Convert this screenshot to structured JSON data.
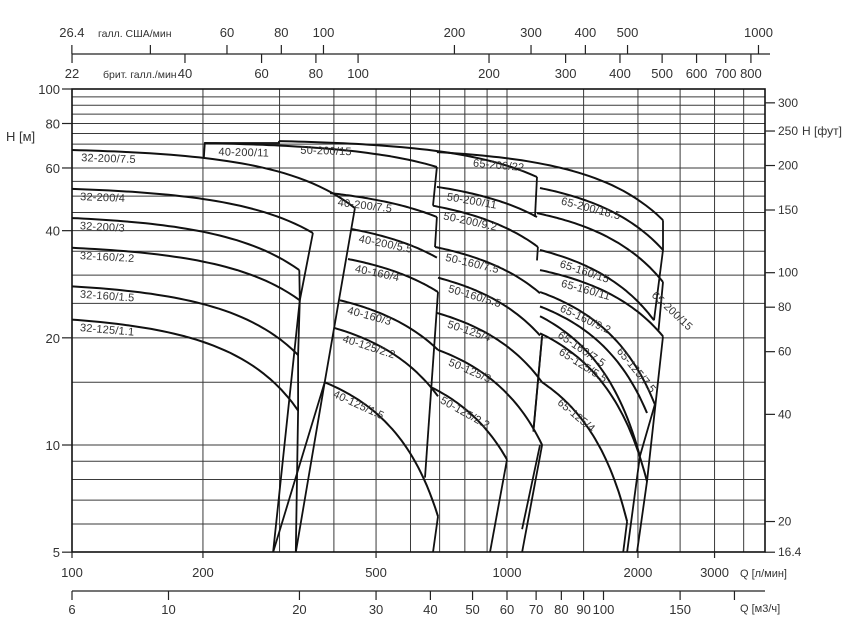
{
  "chart_data": {
    "type": "line",
    "x_scale": "log",
    "y_scale": "log",
    "xlim": [
      100,
      3900
    ],
    "ylim": [
      5,
      100
    ],
    "grid": true,
    "xlabel": "Q [л/мин]",
    "ylabel": "H [м]",
    "y2label": "H [фут]",
    "x2label": "Q [м3/ч]",
    "top_us_label": "галл. США/мин",
    "top_uk_label": "брит. галл./мин",
    "x_ticks": [
      100,
      200,
      500,
      1000,
      2000,
      3000
    ],
    "y_ticks": [
      100,
      80,
      60,
      40,
      20,
      10,
      5
    ],
    "y2_ticks": [
      300,
      250,
      200,
      150,
      100,
      80,
      60,
      40,
      20,
      16.4
    ],
    "us_gpm_ticks": [
      26.4,
      40,
      60,
      80,
      100,
      200,
      300,
      400,
      500,
      1000
    ],
    "us_gpm_labeled": [
      "26.4",
      "",
      "60",
      "80",
      "100",
      "200",
      "300",
      "400",
      "500",
      "1000"
    ],
    "uk_gpm_ticks": [
      22,
      40,
      60,
      80,
      100,
      200,
      300,
      400,
      500,
      600,
      700,
      800
    ],
    "m3h_ticks": [
      6,
      10,
      20,
      30,
      40,
      50,
      60,
      70,
      80,
      90,
      100,
      150,
      200
    ],
    "m3h_labeled": [
      "6",
      "10",
      "20",
      "30",
      "40",
      "50",
      "60",
      "70",
      "80",
      "90",
      "100",
      "150",
      ""
    ],
    "x_gridlines": [
      200,
      300,
      400,
      500,
      600,
      700,
      800,
      900,
      1000,
      1500,
      2000,
      2500,
      3000,
      3500
    ],
    "y_gridlines": [
      95,
      90,
      85,
      80,
      75,
      70,
      60,
      55,
      50,
      45,
      40,
      35,
      30,
      25,
      20,
      15,
      10,
      9,
      8,
      7,
      6
    ],
    "series": [
      {
        "name": "32-200/7.5",
        "points": [
          [
            100,
            67.4
          ],
          [
            447,
            46.3
          ]
        ]
      },
      {
        "name": "32-200/4",
        "points": [
          [
            100,
            52.4
          ],
          [
            358,
            39.4
          ]
        ]
      },
      {
        "name": "32-200/3",
        "points": [
          [
            100,
            43.4
          ],
          [
            333,
            31.0
          ]
        ]
      },
      {
        "name": "32-160/2.2",
        "points": [
          [
            100,
            35.8
          ],
          [
            334,
            25.5
          ]
        ]
      },
      {
        "name": "32-160/1.5",
        "points": [
          [
            100,
            27.9
          ],
          [
            331,
            17.9
          ]
        ]
      },
      {
        "name": "32-125/1.1",
        "points": [
          [
            100,
            22.5
          ],
          [
            331,
            12.5
          ]
        ]
      },
      {
        "name": "40-200/11",
        "points": [
          [
            202,
            70.5
          ],
          [
            690,
            60.4
          ]
        ]
      },
      {
        "name": "40-200/7.5",
        "points": [
          [
            392,
            51.0
          ],
          [
            690,
            43.7
          ]
        ]
      },
      {
        "name": "40-200/5.5",
        "points": [
          [
            440,
            40.4
          ],
          [
            690,
            33.6
          ]
        ]
      },
      {
        "name": "40-160/4",
        "points": [
          [
            431,
            33.3
          ],
          [
            694,
            26.9
          ]
        ]
      },
      {
        "name": "40-160/3",
        "points": [
          [
            413,
            25.5
          ],
          [
            694,
            18.5
          ]
        ]
      },
      {
        "name": "40-125/2.2",
        "points": [
          [
            402,
            21.3
          ],
          [
            694,
            13.7
          ]
        ]
      },
      {
        "name": "40-125/1.5",
        "points": [
          [
            381,
            15.0
          ],
          [
            694,
            6.3
          ]
        ]
      },
      {
        "name": "50-200/15",
        "points": [
          [
            299,
            71.4
          ],
          [
            1172,
            56.6
          ]
        ]
      },
      {
        "name": "50-200/11",
        "points": [
          [
            690,
            53.1
          ],
          [
            1172,
            43.7
          ]
        ]
      },
      {
        "name": "50-200/9.2",
        "points": [
          [
            676,
            47.0
          ],
          [
            1178,
            36.0
          ]
        ]
      },
      {
        "name": "50-160/7.5",
        "points": [
          [
            683,
            36.0
          ],
          [
            1191,
            26.7
          ]
        ]
      },
      {
        "name": "50-160/5.5",
        "points": [
          [
            694,
            29.5
          ],
          [
            1191,
            20.3
          ]
        ]
      },
      {
        "name": "50-125/4",
        "points": [
          [
            690,
            23.5
          ],
          [
            1204,
            15.0
          ]
        ]
      },
      {
        "name": "50-125/3",
        "points": [
          [
            694,
            18.5
          ],
          [
            1204,
            10.0
          ]
        ]
      },
      {
        "name": "50-125/2.2",
        "points": [
          [
            672,
            14.5
          ],
          [
            1000,
            9.1
          ]
        ]
      },
      {
        "name": "65-200/22",
        "points": [
          [
            690,
            66.5
          ],
          [
            2283,
            42.8
          ]
        ]
      },
      {
        "name": "65-200/18.5",
        "points": [
          [
            1191,
            52.7
          ],
          [
            2283,
            35.3
          ]
        ]
      },
      {
        "name": "65-200/15",
        "points": [
          [
            1172,
            44.8
          ],
          [
            2283,
            28.7
          ]
        ]
      },
      {
        "name": "65-160/15",
        "points": [
          [
            1191,
            35.3
          ],
          [
            2177,
            22.4
          ]
        ]
      },
      {
        "name": "65-160/11",
        "points": [
          [
            1191,
            31.0
          ],
          [
            2283,
            20.2
          ]
        ]
      },
      {
        "name": "65-160/9.2",
        "points": [
          [
            1191,
            26.9
          ],
          [
            2188,
            13.0
          ]
        ]
      },
      {
        "name": "65-160/7.5",
        "points": [
          [
            1191,
            23.0
          ],
          [
            2021,
            9.3
          ]
        ]
      },
      {
        "name": "65-125/7.5",
        "points": [
          [
            1191,
            24.5
          ],
          [
            2098,
            12.3
          ]
        ]
      },
      {
        "name": "65-125/5.5",
        "points": [
          [
            1191,
            20.6
          ],
          [
            2098,
            7.9
          ]
        ]
      },
      {
        "name": "65-125/4",
        "points": [
          [
            1204,
            15.0
          ],
          [
            1888,
            6.1
          ]
        ]
      }
    ],
    "boundaries": [
      [
        [
          201,
          64.4
        ],
        [
          202,
          70.5
        ],
        [
          299,
          70.5
        ],
        [
          299,
          71.4
        ]
      ],
      [
        [
          358,
          39.4
        ],
        [
          334,
          25.5
        ],
        [
          290,
          5
        ]
      ],
      [
        [
          333,
          31.0
        ],
        [
          334,
          25.5
        ],
        [
          331,
          17.9
        ],
        [
          331,
          12.5
        ],
        [
          327,
          5
        ]
      ],
      [
        [
          447,
          46.3
        ],
        [
          381,
          15.0
        ],
        [
          327,
          5
        ]
      ],
      [
        [
          381,
          15.0
        ],
        [
          290,
          5
        ]
      ],
      [
        [
          690,
          60.4
        ],
        [
          676,
          47.0
        ]
      ],
      [
        [
          690,
          43.7
        ],
        [
          683,
          36.0
        ]
      ],
      [
        [
          694,
          26.9
        ],
        [
          648,
          8.1
        ]
      ],
      [
        [
          694,
          6.3
        ],
        [
          676,
          5
        ]
      ],
      [
        [
          1172,
          56.6
        ],
        [
          1160,
          43.7
        ]
      ],
      [
        [
          1178,
          36.0
        ],
        [
          1172,
          33.0
        ]
      ],
      [
        [
          1204,
          20.3
        ],
        [
          1150,
          10.9
        ]
      ],
      [
        [
          1204,
          10.0
        ],
        [
          1083,
          5
        ]
      ],
      [
        [
          1000,
          9.1
        ],
        [
          914,
          5
        ]
      ],
      [
        [
          2283,
          42.8
        ],
        [
          2283,
          35.3
        ],
        [
          2177,
          22.4
        ]
      ],
      [
        [
          2283,
          28.7
        ],
        [
          2230,
          21.0
        ]
      ],
      [
        [
          2283,
          20.2
        ],
        [
          2098,
          7.9
        ],
        [
          1990,
          5
        ]
      ],
      [
        [
          2188,
          13.0
        ],
        [
          2021,
          9.3
        ],
        [
          1888,
          5
        ]
      ],
      [
        [
          1888,
          6.1
        ],
        [
          1850,
          5
        ]
      ],
      [
        [
          1204,
          20.2
        ],
        [
          1150,
          11.0
        ]
      ],
      [
        [
          1191,
          10.0
        ],
        [
          1083,
          5.8
        ]
      ]
    ]
  }
}
